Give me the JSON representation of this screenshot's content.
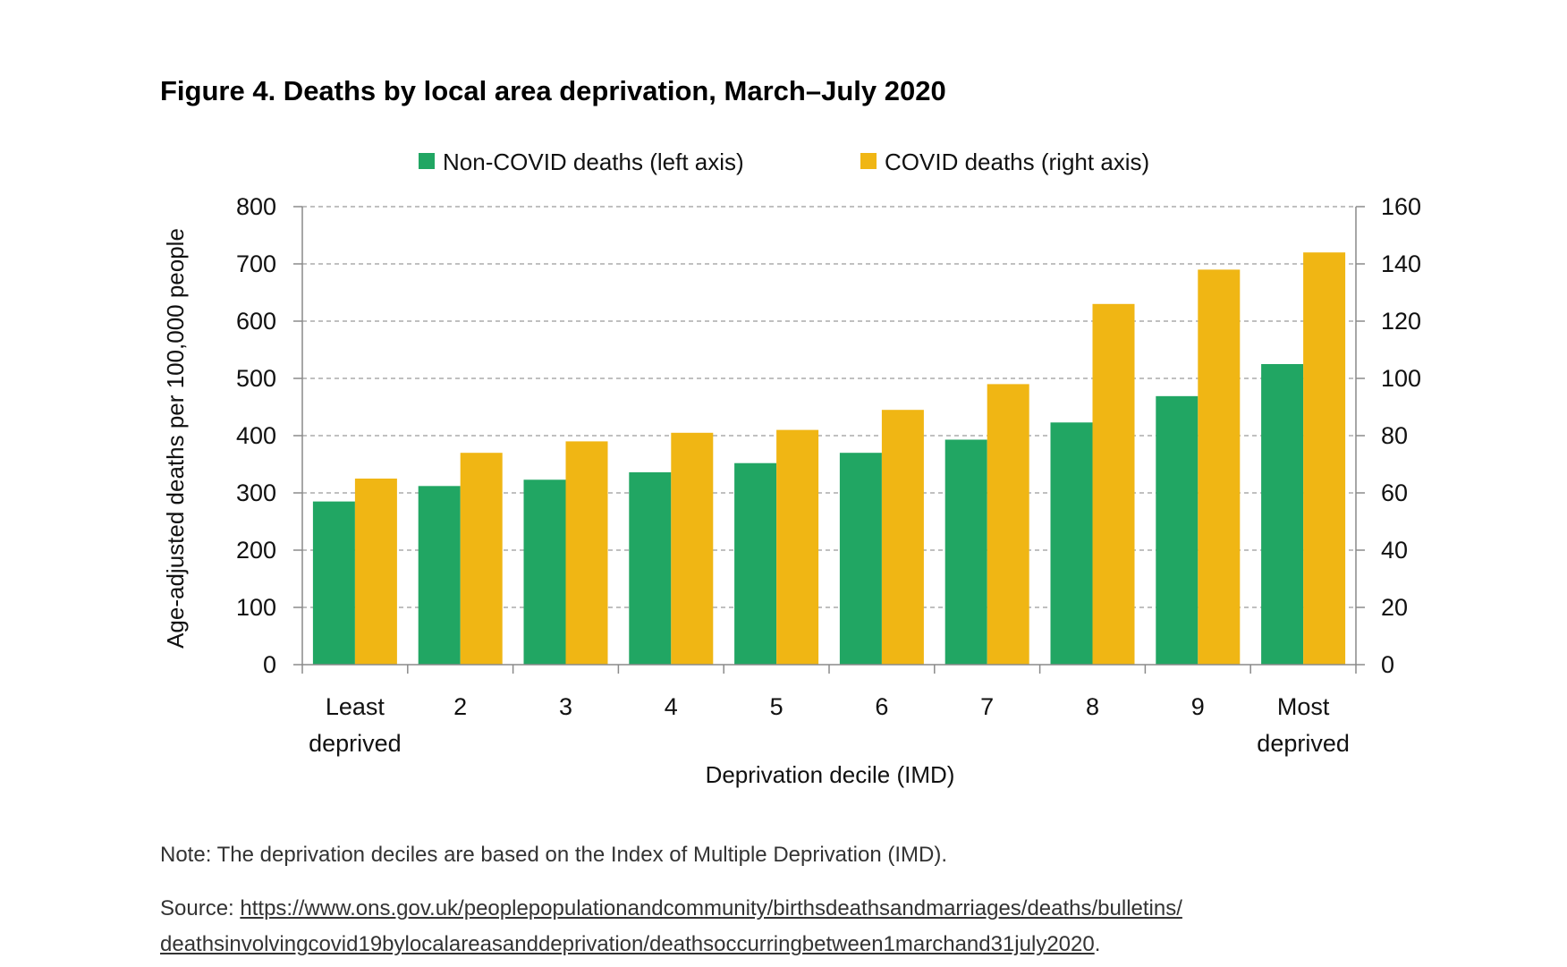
{
  "colors": {
    "non_covid": "#21a663",
    "covid": "#f0b614"
  },
  "chart_data": {
    "type": "bar",
    "title": "Figure 4. Deaths by local area deprivation, March–July 2020",
    "categories": [
      [
        "Least",
        "deprived"
      ],
      [
        "2"
      ],
      [
        "3"
      ],
      [
        "4"
      ],
      [
        "5"
      ],
      [
        "6"
      ],
      [
        "7"
      ],
      [
        "8"
      ],
      [
        "9"
      ],
      [
        "Most",
        "deprived"
      ]
    ],
    "series": [
      {
        "name": "Non-COVID deaths (left axis)",
        "axis": "left",
        "values": [
          285,
          312,
          323,
          336,
          352,
          370,
          393,
          423,
          469,
          525
        ]
      },
      {
        "name": "COVID deaths (right axis)",
        "axis": "right",
        "values": [
          65,
          74,
          78,
          81,
          82,
          89,
          98,
          126,
          138,
          144
        ]
      }
    ],
    "xlabel": "Deprivation decile (IMD)",
    "ylabel": "Age-adjusted deaths per 100,000 people",
    "ylim": [
      0,
      800
    ],
    "y_ticks": [
      0,
      100,
      200,
      300,
      400,
      500,
      600,
      700,
      800
    ],
    "y2lim": [
      0,
      160
    ],
    "y2_ticks": [
      0,
      20,
      40,
      60,
      80,
      100,
      120,
      140,
      160
    ],
    "grid": "horizontal dashed",
    "legend": "top"
  },
  "note": "Note: The deprivation deciles are based on the Index of Multiple Deprivation (IMD).",
  "source": {
    "prefix": "Source: ",
    "line1": "https://www.ons.gov.uk/peoplepopulationandcommunity/birthsdeathsandmarriages/deaths/bulletins/",
    "line2": "deathsinvolvingcovid19bylocalareasanddeprivation/deathsoccurringbetween1marchand31july2020",
    "suffix": "."
  }
}
